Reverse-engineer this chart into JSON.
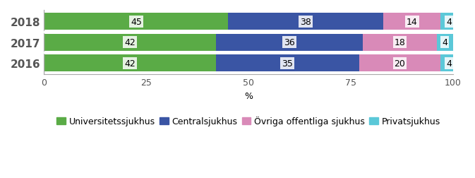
{
  "years": [
    "2018",
    "2017",
    "2016"
  ],
  "categories": [
    "Universitetssjukhus",
    "Centralsjukhus",
    "Övriga offentliga sjukhus",
    "Privatsjukhus"
  ],
  "values": [
    [
      45,
      38,
      14,
      4
    ],
    [
      42,
      36,
      18,
      4
    ],
    [
      42,
      35,
      20,
      4
    ]
  ],
  "bar_colors": [
    "#5aab46",
    "#3a55a4",
    "#d98ab8",
    "#5bc8d8"
  ],
  "xlabel": "%",
  "xlim": [
    0,
    100
  ],
  "xticks": [
    0,
    25,
    50,
    75,
    100
  ],
  "bar_height": 0.82,
  "label_fontsize": 9,
  "tick_fontsize": 9,
  "year_fontsize": 11,
  "legend_fontsize": 9
}
